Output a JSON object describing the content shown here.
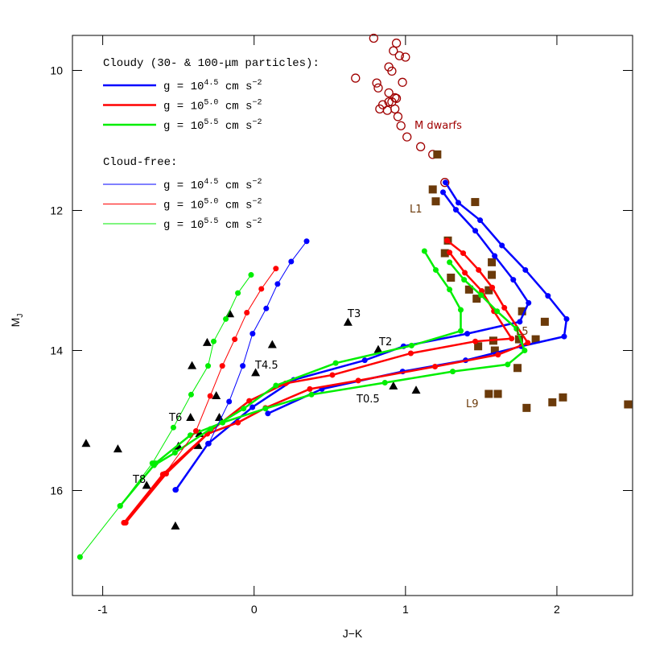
{
  "chart_data": {
    "type": "scatter",
    "xlabel": "J−K",
    "ylabel": [
      "M",
      "J"
    ],
    "xlim": [
      -1.2,
      2.5
    ],
    "ylim": [
      9.5,
      17.5
    ],
    "y_inverted": true,
    "xticks": [
      -1,
      0,
      1,
      2
    ],
    "yticks": [
      10,
      12,
      14,
      16
    ],
    "groups": [
      {
        "title": "Cloudy (30- & 100-μm particles):",
        "line_width": 2.5,
        "series": [
          {
            "name": [
              "g = 10",
              "4.5",
              " cm s",
              "−2"
            ],
            "color": "#0000ff",
            "curves": [
              {
                "x": [
                  1.264,
                  1.349,
                  1.493,
                  1.637,
                  1.792,
                  1.941,
                  2.064,
                  2.048,
                  1.765,
                  1.397,
                  0.981,
                  0.448,
                  0.091
                ],
                "y": [
                  11.6,
                  11.89,
                  12.14,
                  12.5,
                  12.85,
                  13.22,
                  13.55,
                  13.8,
                  13.94,
                  14.14,
                  14.3,
                  14.55,
                  14.9
                ]
              },
              {
                "x": [
                  1.248,
                  1.333,
                  1.461,
                  1.589,
                  1.712,
                  1.813,
                  1.755,
                  1.408,
                  0.987,
                  0.731,
                  0.261,
                  -0.011,
                  -0.304,
                  -0.517
                ],
                "y": [
                  11.74,
                  11.99,
                  12.29,
                  12.65,
                  12.99,
                  13.32,
                  13.59,
                  13.76,
                  13.94,
                  14.14,
                  14.42,
                  14.81,
                  15.33,
                  15.99
                ]
              }
            ]
          },
          {
            "name": [
              "g = 10",
              "5.0",
              " cm s",
              "−2"
            ],
            "color": "#ff0000",
            "curves": [
              {
                "x": [
                  1.275,
                  1.381,
                  1.483,
                  1.573,
                  1.653,
                  1.808,
                  1.611,
                  1.195,
                  0.688,
                  0.368,
                  0.075,
                  -0.107,
                  -0.309,
                  -0.603,
                  -0.859
                ],
                "y": [
                  12.43,
                  12.61,
                  12.85,
                  13.1,
                  13.39,
                  13.89,
                  14.06,
                  14.23,
                  14.43,
                  14.55,
                  14.82,
                  15.03,
                  15.19,
                  15.77,
                  16.46
                ]
              },
              {
                "x": [
                  1.291,
                  1.392,
                  1.504,
                  1.584,
                  1.701,
                  1.461,
                  1.035,
                  0.517,
                  0.208,
                  -0.032,
                  -0.288,
                  -0.581,
                  -0.848
                ],
                "y": [
                  12.6,
                  12.89,
                  13.15,
                  13.44,
                  13.83,
                  13.87,
                  14.04,
                  14.35,
                  14.47,
                  14.72,
                  15.15,
                  15.76,
                  16.46
                ]
              }
            ]
          },
          {
            "name": [
              "g = 10",
              "5.5",
              " cm s",
              "−2"
            ],
            "color": "#00ee00",
            "curves": [
              {
                "x": [
                  1.125,
                  1.2,
                  1.291,
                  1.365,
                  1.365,
                  1.04,
                  0.539,
                  0.144,
                  -0.069,
                  -0.288,
                  -0.523,
                  -0.661
                ],
                "y": [
                  12.58,
                  12.85,
                  13.13,
                  13.42,
                  13.72,
                  13.93,
                  14.18,
                  14.5,
                  14.83,
                  15.12,
                  15.46,
                  15.64
                ]
              },
              {
                "x": [
                  1.291,
                  1.387,
                  1.499,
                  1.605,
                  1.733,
                  1.787,
                  1.675,
                  1.312,
                  0.864,
                  0.379,
                  0.075,
                  -0.208,
                  -0.421,
                  -0.651,
                  -0.885
                ],
                "y": [
                  12.74,
                  12.99,
                  13.21,
                  13.44,
                  13.69,
                  14.0,
                  14.2,
                  14.3,
                  14.46,
                  14.63,
                  14.83,
                  15.03,
                  15.21,
                  15.61,
                  16.22
                ]
              }
            ]
          }
        ]
      },
      {
        "title": "Cloud-free:",
        "line_width": 1,
        "series": [
          {
            "name": [
              "g = 10",
              "4.5",
              " cm s",
              "−2"
            ],
            "color": "#0000ff",
            "curves": [
              {
                "x": [
                  0.347,
                  0.245,
                  0.155,
                  0.08,
                  -0.01,
                  -0.075,
                  -0.165,
                  -0.3,
                  -0.52
                ],
                "y": [
                  12.44,
                  12.73,
                  13.05,
                  13.4,
                  13.76,
                  14.22,
                  14.73,
                  15.33,
                  15.99
                ]
              }
            ]
          },
          {
            "name": [
              "g = 10",
              "5.0",
              " cm s",
              "−2"
            ],
            "color": "#ff0000",
            "curves": [
              {
                "x": [
                  0.144,
                  0.048,
                  -0.048,
                  -0.128,
                  -0.21,
                  -0.29,
                  -0.384,
                  -0.59,
                  -0.86
                ],
                "y": [
                  12.83,
                  13.12,
                  13.46,
                  13.84,
                  14.22,
                  14.65,
                  15.15,
                  15.76,
                  16.46
                ]
              }
            ]
          },
          {
            "name": [
              "g = 10",
              "5.5",
              " cm s",
              "−2"
            ],
            "color": "#00ee00",
            "curves": [
              {
                "x": [
                  -0.02,
                  -0.107,
                  -0.187,
                  -0.267,
                  -0.304,
                  -0.416,
                  -0.533,
                  -0.672,
                  -0.885,
                  -1.15
                ],
                "y": [
                  12.92,
                  13.18,
                  13.55,
                  13.87,
                  14.22,
                  14.63,
                  15.1,
                  15.61,
                  16.22,
                  16.95
                ]
              }
            ]
          }
        ]
      }
    ],
    "points": [
      {
        "marker": "circle-open",
        "color": "#a00000",
        "x": [
          0.79,
          0.94,
          0.92,
          0.96,
          1.0,
          0.89,
          0.91,
          0.67,
          0.98,
          0.81,
          0.82,
          0.89,
          0.93,
          0.89,
          0.85,
          0.91,
          0.94,
          0.83,
          0.88,
          0.93,
          0.95,
          0.97,
          1.01,
          1.1,
          1.18,
          1.26
        ],
        "y": [
          9.54,
          9.61,
          9.72,
          9.79,
          9.81,
          9.95,
          10.01,
          10.11,
          10.17,
          10.18,
          10.25,
          10.32,
          10.39,
          10.45,
          10.49,
          10.45,
          10.4,
          10.55,
          10.57,
          10.55,
          10.66,
          10.79,
          10.95,
          11.09,
          11.2,
          11.6
        ]
      },
      {
        "marker": "square",
        "color": "#6b3a0a",
        "x": [
          1.21,
          1.18,
          1.2,
          1.46,
          1.28,
          1.26,
          1.57,
          1.3,
          1.57,
          1.42,
          1.55,
          1.47,
          1.77,
          1.92,
          1.75,
          1.58,
          1.48,
          1.86,
          1.59,
          1.74,
          1.55,
          1.61,
          1.8,
          1.97,
          2.04,
          2.47
        ],
        "y": [
          11.2,
          11.7,
          11.87,
          11.88,
          12.43,
          12.61,
          12.74,
          12.96,
          12.92,
          13.13,
          13.14,
          13.26,
          13.44,
          13.59,
          13.84,
          13.86,
          13.94,
          13.84,
          14.0,
          14.25,
          14.62,
          14.62,
          14.82,
          14.74,
          14.67,
          14.77
        ]
      },
      {
        "marker": "triangle",
        "color": "#000000",
        "x": [
          -1.11,
          -0.9,
          -0.71,
          -0.52,
          -0.42,
          -0.36,
          -0.37,
          -0.5,
          -0.25,
          -0.23,
          -0.41,
          -0.31,
          -0.16,
          0.01,
          0.12,
          0.62,
          0.82,
          0.92,
          1.07
        ],
        "y": [
          15.33,
          15.41,
          15.93,
          16.51,
          14.96,
          15.19,
          15.36,
          15.37,
          14.65,
          14.96,
          14.22,
          13.89,
          13.48,
          14.32,
          13.92,
          13.6,
          13.99,
          14.51,
          14.57
        ]
      }
    ],
    "annotations": [
      {
        "text": "M dwarfs",
        "color": "#a00000"
      },
      {
        "text": "L1",
        "color": "#6b3a0a"
      },
      {
        "text": "L5",
        "color": "#6b3a0a"
      },
      {
        "text": "L9",
        "color": "#6b3a0a"
      },
      {
        "text": "T3",
        "color": "#000000"
      },
      {
        "text": "T2",
        "color": "#000000"
      },
      {
        "text": "T4.5",
        "color": "#000000"
      },
      {
        "text": "T0.5",
        "color": "#000000"
      },
      {
        "text": "T6",
        "color": "#000000"
      },
      {
        "text": "T8",
        "color": "#000000"
      }
    ]
  }
}
